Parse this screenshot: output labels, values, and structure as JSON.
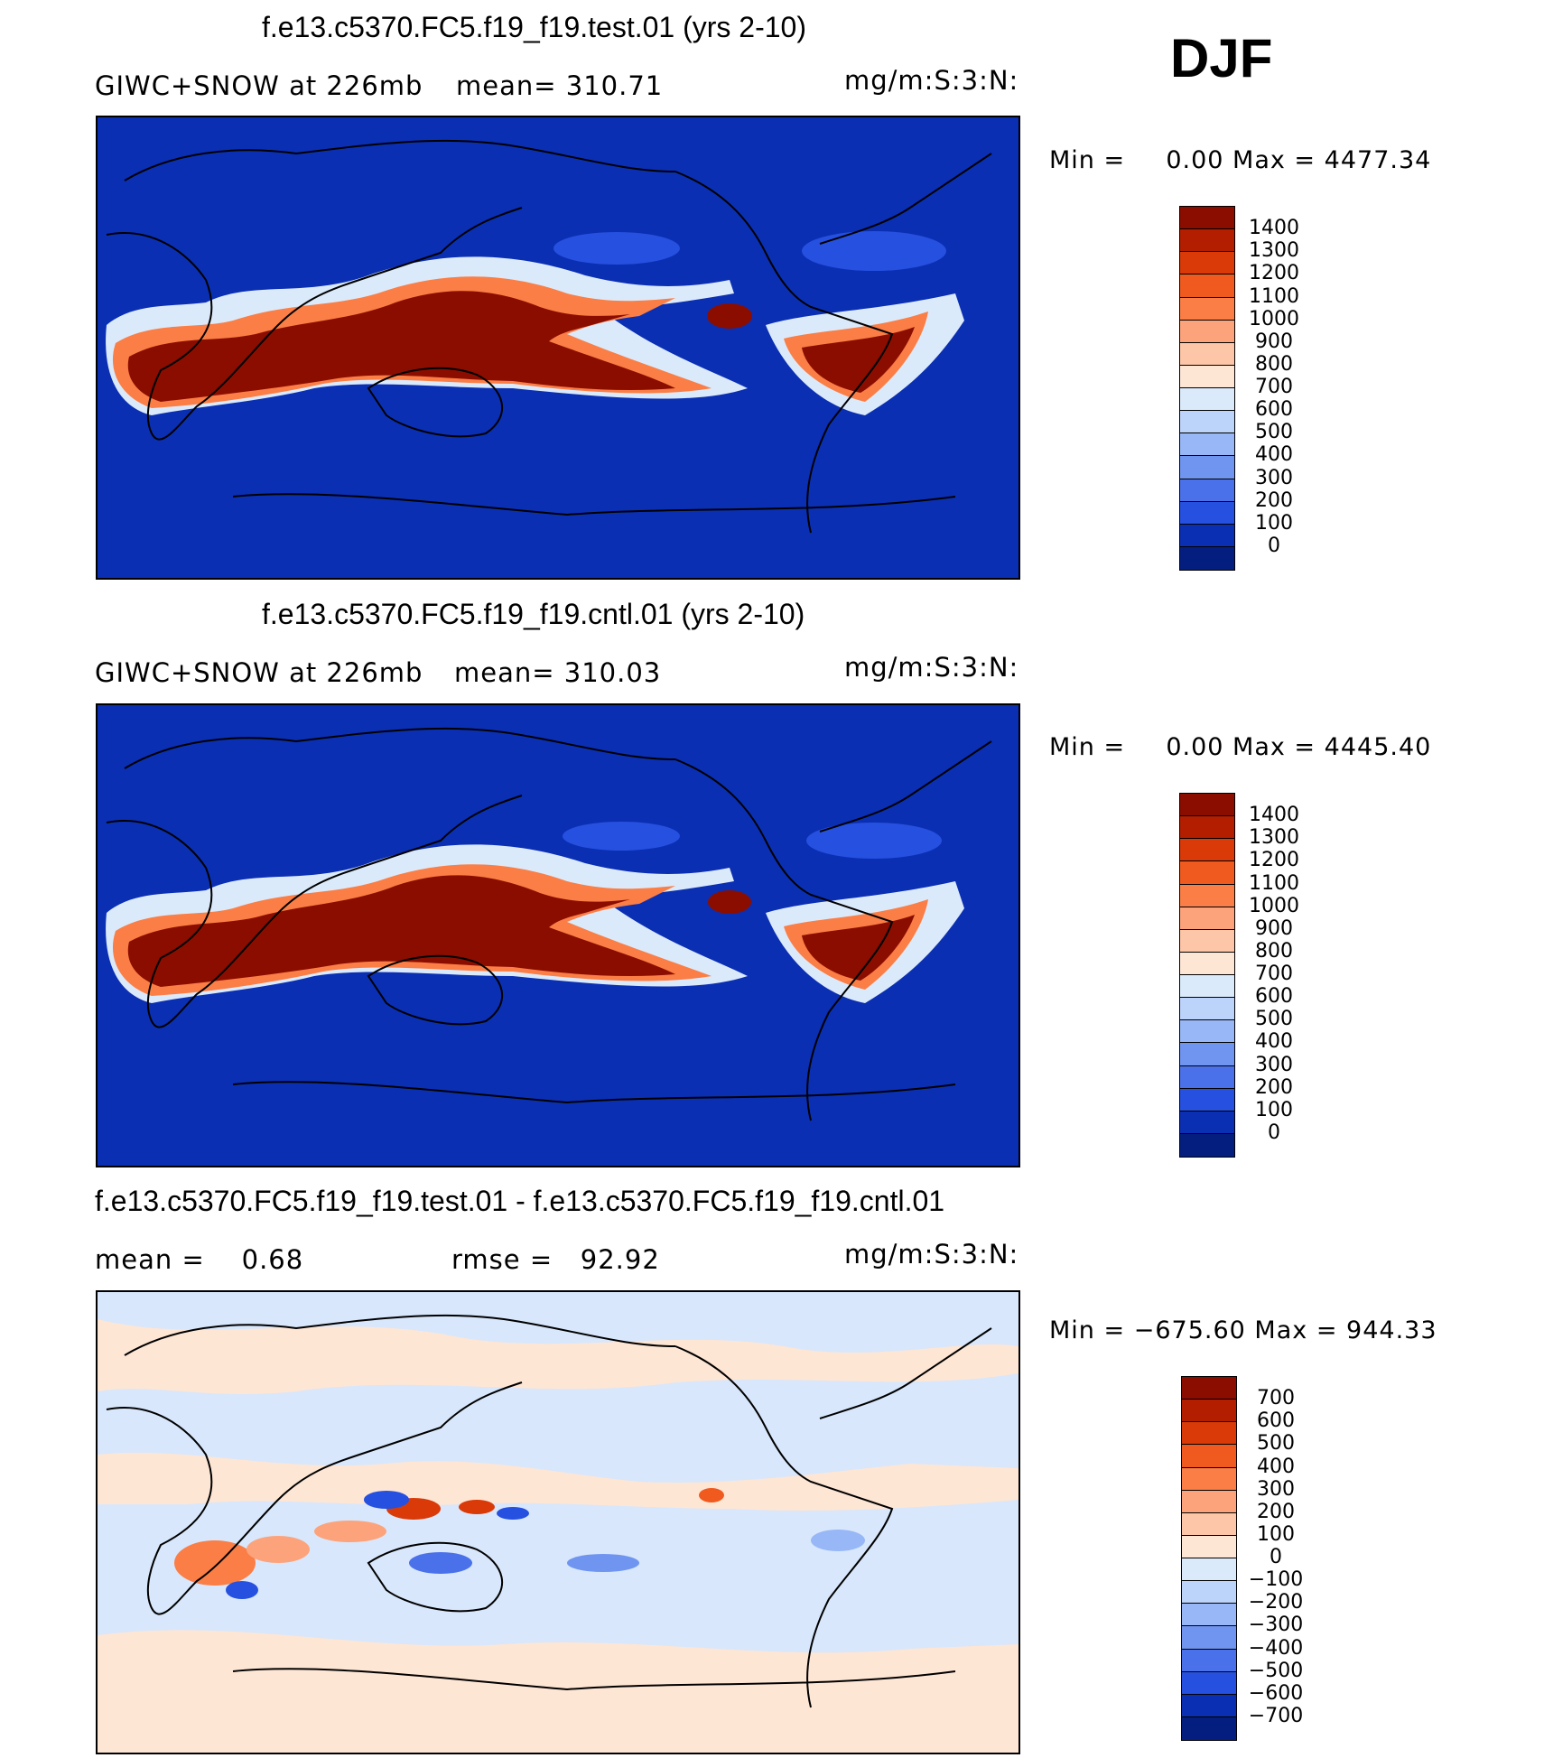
{
  "season": "DJF",
  "panels": [
    {
      "title": "f.e13.c5370.FC5.f19_f19.test.01 (yrs 2-10)",
      "variable": "GIWC+SNOW at 226mb",
      "stat": "mean= 310.71",
      "units": "mg/m:S:3:N:",
      "min_label": "Min =",
      "min_value": "0.00",
      "max_label": "Max =",
      "max_value": "4477.34",
      "background": "#0b2fb3",
      "colorbar": {
        "labels": [
          "1400",
          "1300",
          "1200",
          "1100",
          "1000",
          "900",
          "800",
          "700",
          "600",
          "500",
          "400",
          "300",
          "200",
          "100",
          "0"
        ],
        "colors": [
          "#8b0d00",
          "#b31d00",
          "#d93a08",
          "#f05a1e",
          "#fa7e45",
          "#fca37b",
          "#fdc6a8",
          "#fee6d5",
          "#dbeafb",
          "#bcd3fa",
          "#97b7f7",
          "#6f95f1",
          "#4a71ea",
          "#2550e0",
          "#0b2fb3",
          "#041e7f"
        ]
      }
    },
    {
      "title": "f.e13.c5370.FC5.f19_f19.cntl.01 (yrs 2-10)",
      "variable": "GIWC+SNOW at 226mb",
      "stat": "mean= 310.03",
      "units": "mg/m:S:3:N:",
      "min_label": "Min =",
      "min_value": "0.00",
      "max_label": "Max =",
      "max_value": "4445.40",
      "background": "#0b2fb3",
      "colorbar": {
        "labels": [
          "1400",
          "1300",
          "1200",
          "1100",
          "1000",
          "900",
          "800",
          "700",
          "600",
          "500",
          "400",
          "300",
          "200",
          "100",
          "0"
        ],
        "colors": [
          "#8b0d00",
          "#b31d00",
          "#d93a08",
          "#f05a1e",
          "#fa7e45",
          "#fca37b",
          "#fdc6a8",
          "#fee6d5",
          "#dbeafb",
          "#bcd3fa",
          "#97b7f7",
          "#6f95f1",
          "#4a71ea",
          "#2550e0",
          "#0b2fb3",
          "#041e7f"
        ]
      }
    },
    {
      "title": "f.e13.c5370.FC5.f19_f19.test.01 - f.e13.c5370.FC5.f19_f19.cntl.01",
      "variable": "mean =    0.68",
      "stat": "rmse =   92.92",
      "units": "mg/m:S:3:N:",
      "min_label": "Min =",
      "min_value": "−675.60",
      "max_label": "Max =",
      "max_value": "944.33",
      "background": "#d8e7fb",
      "colorbar": {
        "labels": [
          "700",
          "600",
          "500",
          "400",
          "300",
          "200",
          "100",
          "0",
          "−100",
          "−200",
          "−300",
          "−400",
          "−500",
          "−600",
          "−700"
        ],
        "colors": [
          "#8b0d00",
          "#b31d00",
          "#d93a08",
          "#f05a1e",
          "#fa7e45",
          "#fca37b",
          "#fdc6a8",
          "#fee6d5",
          "#dbeafb",
          "#bcd3fa",
          "#97b7f7",
          "#6f95f1",
          "#4a71ea",
          "#2550e0",
          "#0b2fb3",
          "#041e7f"
        ]
      }
    }
  ]
}
